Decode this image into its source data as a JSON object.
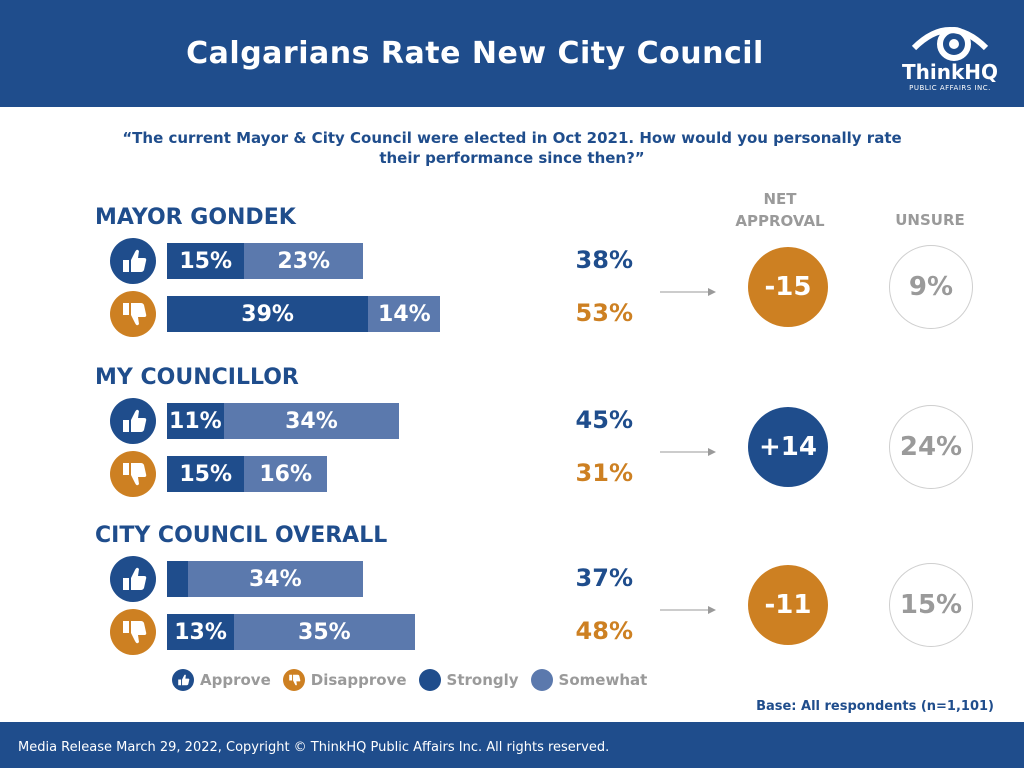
{
  "header": {
    "title": "Calgarians Rate New City Council"
  },
  "logo": {
    "name": "ThinkHQ",
    "subtitle": "PUBLIC AFFAIRS INC."
  },
  "question": "“The current Mayor & City Council were elected in Oct 2021. How would you personally rate their performance since then?”",
  "columns": {
    "net_line1": "NET",
    "net_line2": "APPROVAL",
    "unsure": "UNSURE"
  },
  "colors": {
    "strongly": "#1f4d8c",
    "somewhat": "#5b79ad",
    "approve_icon": "#1f4d8c",
    "disapprove_icon": "#cd8022",
    "net_negative": "#cd8022",
    "net_positive": "#1f4d8c"
  },
  "icons": {
    "approve": "thumbs-up-icon",
    "disapprove": "thumbs-down-icon"
  },
  "chart_data": {
    "type": "bar",
    "orientation": "horizontal",
    "stacked": true,
    "title": "Calgarians Rate New City Council",
    "categories": [
      "MAYOR GONDEK",
      "MY COUNCILLOR",
      "CITY COUNCIL OVERALL"
    ],
    "series": [
      {
        "name": "Approve Strongly",
        "values": [
          15,
          11,
          4
        ]
      },
      {
        "name": "Approve Somewhat",
        "values": [
          23,
          34,
          34
        ]
      },
      {
        "name": "Disapprove Strongly",
        "values": [
          39,
          15,
          13
        ]
      },
      {
        "name": "Disapprove Somewhat",
        "values": [
          14,
          16,
          35
        ]
      }
    ],
    "approve_total": [
      38,
      45,
      37
    ],
    "disapprove_total": [
      53,
      31,
      48
    ],
    "net_approval": [
      -15,
      14,
      -11
    ],
    "unsure": [
      9,
      24,
      15
    ],
    "groups": [
      {
        "title": "MAYOR GONDEK",
        "approve": {
          "strong": 15,
          "somewhat": 23,
          "strong_label": "15%",
          "somewhat_label": "23%",
          "total_label": "38%"
        },
        "disapprove": {
          "strong": 39,
          "somewhat": 14,
          "strong_label": "39%",
          "somewhat_label": "14%",
          "total_label": "53%"
        },
        "net": -15,
        "net_label": "-15",
        "unsure_label": "9%"
      },
      {
        "title": "MY COUNCILLOR",
        "approve": {
          "strong": 11,
          "somewhat": 34,
          "strong_label": "11%",
          "somewhat_label": "34%",
          "total_label": "45%"
        },
        "disapprove": {
          "strong": 15,
          "somewhat": 16,
          "strong_label": "15%",
          "somewhat_label": "16%",
          "total_label": "31%"
        },
        "net": 14,
        "net_label": "+14",
        "unsure_label": "24%"
      },
      {
        "title": "CITY COUNCIL OVERALL",
        "approve": {
          "strong": 4,
          "somewhat": 34,
          "strong_label": "",
          "somewhat_label": "34%",
          "total_label": "37%"
        },
        "disapprove": {
          "strong": 13,
          "somewhat": 35,
          "strong_label": "13%",
          "somewhat_label": "35%",
          "total_label": "48%"
        },
        "net": -11,
        "net_label": "-11",
        "unsure_label": "15%"
      }
    ],
    "legend": [
      "Approve",
      "Disapprove",
      "Strongly",
      "Somewhat"
    ]
  },
  "base_note": "Base: All respondents (n=1,101)",
  "footer": "Media Release March 29, 2022, Copyright © ThinkHQ Public Affairs Inc. All rights reserved."
}
